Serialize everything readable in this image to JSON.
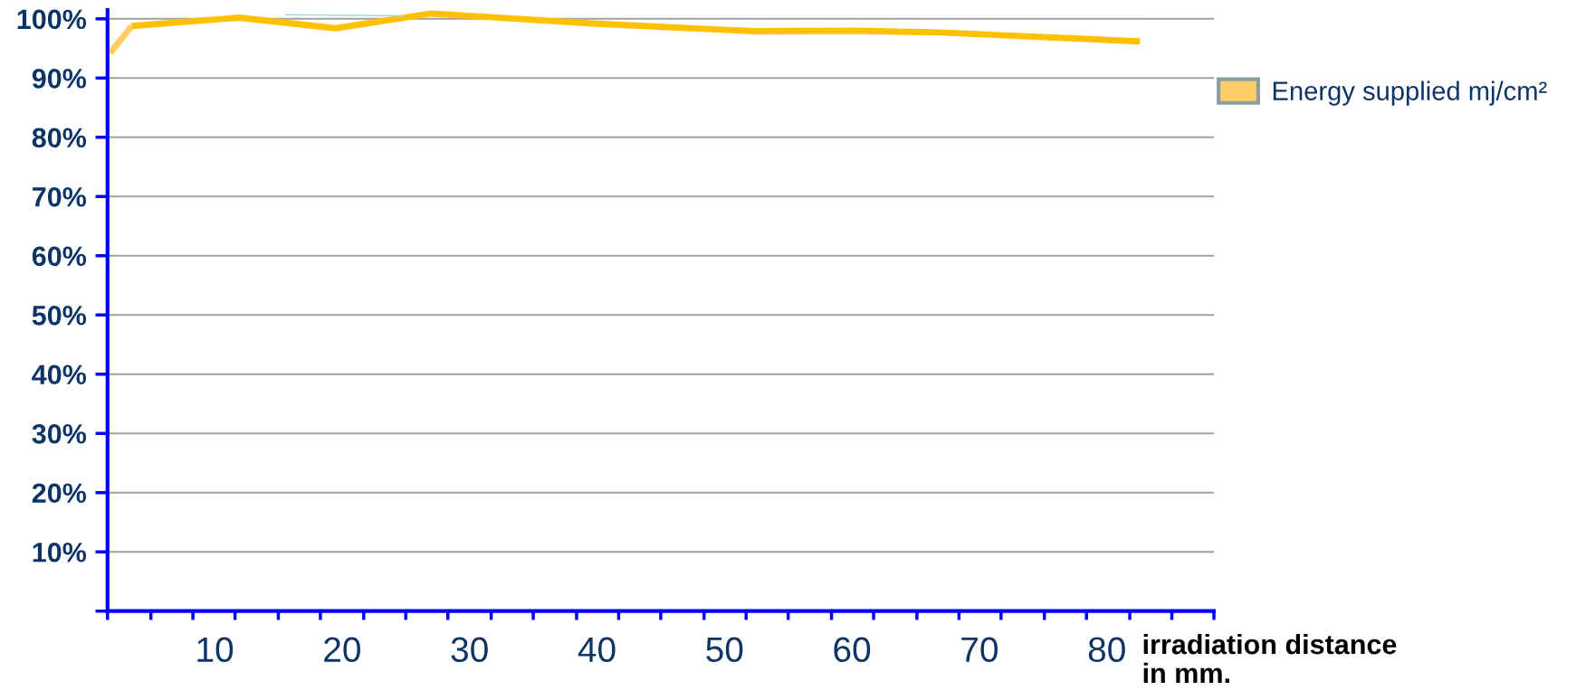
{
  "chart_data": {
    "type": "line",
    "xlabel": "irradiation distance\nin mm.",
    "xlim": [
      1.6,
      88.4
    ],
    "ylim": [
      0,
      101.5
    ],
    "xticks": [
      {
        "value": 1.6,
        "label": null
      },
      {
        "value": 5.0,
        "label": null
      },
      {
        "value": 8.3,
        "label": null
      },
      10,
      {
        "value": 11.6,
        "label": null
      },
      {
        "value": 15.0,
        "label": null
      },
      {
        "value": 18.3,
        "label": null
      },
      20,
      {
        "value": 21.7,
        "label": null
      },
      {
        "value": 25.0,
        "label": null
      },
      {
        "value": 28.3,
        "label": null
      },
      30,
      {
        "value": 31.7,
        "label": null
      },
      {
        "value": 35.0,
        "label": null
      },
      {
        "value": 38.4,
        "label": null
      },
      40,
      {
        "value": 41.7,
        "label": null
      },
      {
        "value": 45.0,
        "label": null
      },
      {
        "value": 48.4,
        "label": null
      },
      50,
      {
        "value": 51.7,
        "label": null
      },
      {
        "value": 55.0,
        "label": null
      },
      {
        "value": 58.4,
        "label": null
      },
      60,
      {
        "value": 61.7,
        "label": null
      },
      {
        "value": 65.1,
        "label": null
      },
      {
        "value": 68.4,
        "label": null
      },
      70,
      {
        "value": 71.7,
        "label": null
      },
      {
        "value": 75.1,
        "label": null
      },
      {
        "value": 78.4,
        "label": null
      },
      80,
      {
        "value": 81.8,
        "label": null
      },
      {
        "value": 85.1,
        "label": null
      },
      {
        "value": 88.4,
        "label": null
      }
    ],
    "yticks": [
      {
        "value": 0,
        "label": null
      },
      {
        "value": 10,
        "label": "10%"
      },
      {
        "value": 20,
        "label": "20%"
      },
      {
        "value": 30,
        "label": "30%"
      },
      {
        "value": 40,
        "label": "40%"
      },
      {
        "value": 50,
        "label": "50%"
      },
      {
        "value": 60,
        "label": "60%"
      },
      {
        "value": 70,
        "label": "70%"
      },
      {
        "value": 80,
        "label": "80%"
      },
      {
        "value": 90,
        "label": "90%"
      },
      {
        "value": 100,
        "label": "100%"
      }
    ],
    "grid": "y",
    "legend": "right",
    "series": [
      {
        "name": "Energy supplied mj/cm²",
        "color": "#ffcc66",
        "x": [
          1.8,
          3.5
        ],
        "values": [
          94.2,
          98.8
        ]
      },
      {
        "color": "#ffc000",
        "x": [
          3.5,
          11.9,
          19.5,
          27.0,
          39.7,
          52.4,
          60.3,
          66.9,
          82.6
        ],
        "values": [
          98.8,
          100.2,
          98.4,
          100.9,
          99.2,
          97.9,
          98.0,
          97.7,
          96.2
        ]
      },
      {
        "color": "#a9d5dc",
        "x": [
          15.5,
          24.9
        ],
        "values": [
          100.7,
          100.5
        ]
      }
    ]
  }
}
